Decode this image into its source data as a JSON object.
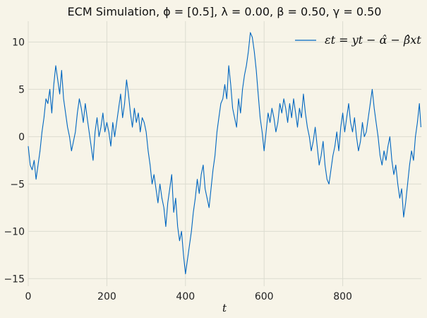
{
  "chart_data": {
    "type": "line",
    "title": "ECM Simulation, ϕ = [0.5], λ = 0.00, β = 0.50, γ = 0.50",
    "xlabel": "t",
    "ylabel": "",
    "xlim": [
      0,
      1000
    ],
    "ylim": [
      -15.8,
      12.2
    ],
    "xticks": [
      0,
      200,
      400,
      600,
      800
    ],
    "yticks": [
      -15,
      -10,
      -5,
      0,
      5,
      10
    ],
    "grid": true,
    "legend_position": "top-right",
    "series": [
      {
        "name": "εt = yt − α̂ − β̂xt",
        "color": "#0066c0",
        "x": [
          0,
          5,
          10,
          15,
          20,
          25,
          30,
          35,
          40,
          45,
          50,
          55,
          60,
          65,
          70,
          75,
          80,
          85,
          90,
          95,
          100,
          105,
          110,
          115,
          120,
          125,
          130,
          135,
          140,
          145,
          150,
          155,
          160,
          165,
          170,
          175,
          180,
          185,
          190,
          195,
          200,
          205,
          210,
          215,
          220,
          225,
          230,
          235,
          240,
          245,
          250,
          255,
          260,
          265,
          270,
          275,
          280,
          285,
          290,
          295,
          300,
          305,
          310,
          315,
          320,
          325,
          330,
          335,
          340,
          345,
          350,
          355,
          360,
          365,
          370,
          375,
          380,
          385,
          390,
          395,
          400,
          405,
          410,
          415,
          420,
          425,
          430,
          435,
          440,
          445,
          450,
          455,
          460,
          465,
          470,
          475,
          480,
          485,
          490,
          495,
          500,
          505,
          510,
          515,
          520,
          525,
          530,
          535,
          540,
          545,
          550,
          555,
          560,
          565,
          570,
          575,
          580,
          585,
          590,
          595,
          600,
          605,
          610,
          615,
          620,
          625,
          630,
          635,
          640,
          645,
          650,
          655,
          660,
          665,
          670,
          675,
          680,
          685,
          690,
          695,
          700,
          705,
          710,
          715,
          720,
          725,
          730,
          735,
          740,
          745,
          750,
          755,
          760,
          765,
          770,
          775,
          780,
          785,
          790,
          795,
          800,
          805,
          810,
          815,
          820,
          825,
          830,
          835,
          840,
          845,
          850,
          855,
          860,
          865,
          870,
          875,
          880,
          885,
          890,
          895,
          900,
          905,
          910,
          915,
          920,
          925,
          930,
          935,
          940,
          945,
          950,
          955,
          960,
          965,
          970,
          975,
          980,
          985,
          990,
          995,
          999
        ],
        "values": [
          -1,
          -3,
          -3.5,
          -2.5,
          -4.5,
          -3,
          -1.5,
          0.5,
          2,
          4,
          3.5,
          5,
          2.5,
          5.5,
          7.5,
          6,
          4.5,
          7,
          4,
          2.5,
          1,
          0,
          -1.5,
          -0.5,
          0.5,
          2.5,
          4,
          3,
          1.5,
          3.5,
          2,
          0.5,
          -1,
          -2.5,
          0.5,
          2,
          0,
          1,
          2.5,
          0.5,
          1.5,
          0.5,
          -1,
          1.5,
          0,
          1.5,
          3,
          4.5,
          2,
          3.5,
          6,
          4.5,
          2.5,
          1,
          3,
          1.5,
          2.5,
          0.5,
          2,
          1.5,
          0.5,
          -1.5,
          -3,
          -5,
          -4,
          -5.5,
          -7,
          -5,
          -6.5,
          -7.5,
          -9.5,
          -7,
          -5.5,
          -4,
          -8,
          -6.5,
          -9.5,
          -11,
          -10,
          -12.5,
          -14.5,
          -13,
          -11.5,
          -10,
          -8,
          -6.5,
          -4.5,
          -6,
          -4,
          -3,
          -5.5,
          -6.5,
          -7.5,
          -5.5,
          -3.5,
          -2,
          0.5,
          2,
          3.5,
          4,
          5.5,
          4,
          7.5,
          5.5,
          3,
          2,
          1,
          4,
          2.5,
          5,
          6.5,
          7.5,
          9,
          11,
          10.5,
          9,
          7,
          4.5,
          2,
          0.5,
          -1.5,
          0.5,
          2.5,
          1.5,
          3,
          2,
          0.5,
          1.5,
          3.5,
          2.5,
          4,
          3,
          1.5,
          3.5,
          2,
          4,
          2.5,
          1,
          3,
          2,
          4.5,
          2.5,
          1,
          0,
          -1.5,
          -0.5,
          1,
          -1,
          -3,
          -2,
          -0.5,
          -3,
          -4.5,
          -5,
          -3.5,
          -2,
          -1,
          0.5,
          -1.5,
          1,
          2.5,
          0.5,
          2,
          3.5,
          1.5,
          0.5,
          2,
          0,
          -1.5,
          -0.5,
          1.5,
          0,
          0.5,
          2,
          3.5,
          5,
          3,
          1.5,
          0,
          -2,
          -3,
          -1.5,
          -2.5,
          -1,
          0,
          -2.5,
          -4,
          -3,
          -5,
          -6.5,
          -5.5,
          -8.5,
          -7,
          -5,
          -3,
          -1.5,
          -2.5,
          0,
          1.5,
          3.5,
          1
        ]
      }
    ]
  }
}
